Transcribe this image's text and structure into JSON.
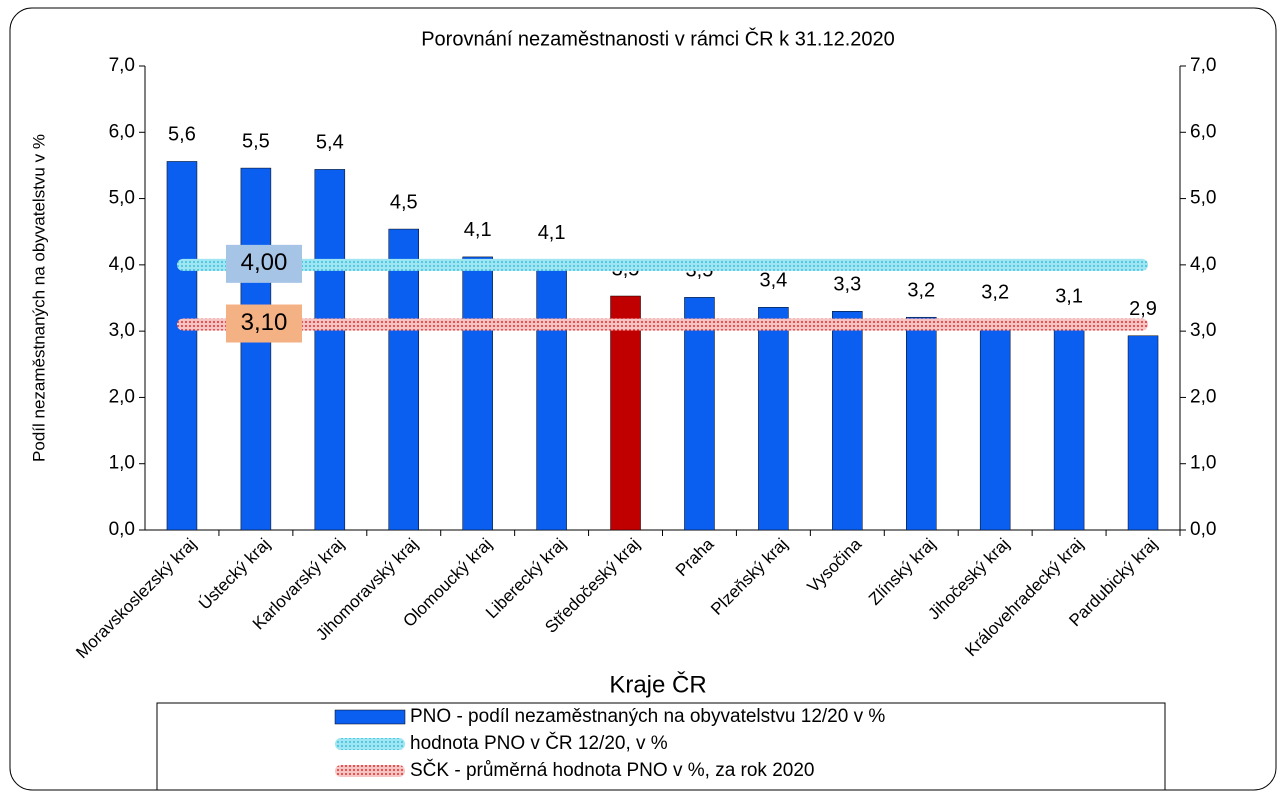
{
  "chart_data": {
    "type": "bar",
    "title": "Porovnání nezaměstnanosti v rámci ČR k 31.12.2020",
    "y_label": "Podíl nezaměstnaných na obyvatelstvu v %",
    "x_label": "Kraje ČR",
    "categories": [
      "Moravskoslezský kraj",
      "Ústecký kraj",
      "Karlovarský kraj",
      "Jihomoravský kraj",
      "Olomoucký kraj",
      "Liberecký kraj",
      "Středočeský kraj",
      "Praha",
      "Plzeňský kraj",
      "Vysočina",
      "Zlínský kraj",
      "Jihočeský kraj",
      "Královehradecký kraj",
      "Pardubický kraj"
    ],
    "series": [
      {
        "name": "PNO - podíl nezaměstnaných na obyvatelstvu 12/20 v %",
        "color": "#0a5ff0",
        "colors": [
          "#0a5ff0",
          "#0a5ff0",
          "#0a5ff0",
          "#0a5ff0",
          "#0a5ff0",
          "#0a5ff0",
          "#c00000",
          "#0a5ff0",
          "#0a5ff0",
          "#0a5ff0",
          "#0a5ff0",
          "#0a5ff0",
          "#0a5ff0",
          "#0a5ff0"
        ],
        "values": [
          5.56,
          5.46,
          5.44,
          4.54,
          4.12,
          4.08,
          3.53,
          3.51,
          3.36,
          3.3,
          3.21,
          3.18,
          3.12,
          2.93
        ],
        "value_labels": [
          "5,6",
          "5,5",
          "5,4",
          "4,5",
          "4,1",
          "4,1",
          "3,5",
          "3,5",
          "3,4",
          "3,3",
          "3,2",
          "3,2",
          "3,1",
          "2,9"
        ]
      },
      {
        "name": "hodnota PNO v ČR 12/20, v %",
        "color": "#6fd6ea",
        "label_bg": "#a6c4e6",
        "label_color": "#000000",
        "value": 4.0,
        "value_label": "4,00"
      },
      {
        "name": "SČK - průměrná hodnota PNO v %, za rok 2020",
        "color": "#f08c8c",
        "label_bg": "#f4b183",
        "label_color": "#d00000",
        "value": 3.1,
        "value_label": "3,10"
      }
    ],
    "ylim": [
      0,
      7
    ],
    "yticks": [
      {
        "value": 0,
        "label": "0,0"
      },
      {
        "value": 1,
        "label": "1,0"
      },
      {
        "value": 2,
        "label": "2,0"
      },
      {
        "value": 3,
        "label": "3,0"
      },
      {
        "value": 4,
        "label": "4,0"
      },
      {
        "value": 5,
        "label": "5,0"
      },
      {
        "value": 6,
        "label": "6,0"
      },
      {
        "value": 7,
        "label": "7,0"
      }
    ],
    "y2lim": [
      0,
      7
    ],
    "y2ticks": [
      {
        "value": 0,
        "label": "0,0"
      },
      {
        "value": 1,
        "label": "1,0"
      },
      {
        "value": 2,
        "label": "2,0"
      },
      {
        "value": 3,
        "label": "3,0"
      },
      {
        "value": 4,
        "label": "4,0"
      },
      {
        "value": 5,
        "label": "5,0"
      },
      {
        "value": 6,
        "label": "6,0"
      },
      {
        "value": 7,
        "label": "7,0"
      }
    ]
  }
}
